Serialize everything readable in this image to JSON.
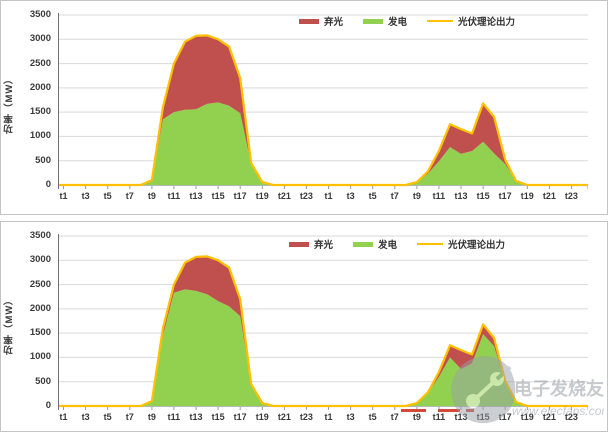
{
  "legend": {
    "curtailment": "弃光",
    "generation": "发电",
    "theoretical": "光伏理论出力"
  },
  "axis": {
    "y_title": "功率（MW）",
    "y_ticks": [
      "3500",
      "3000",
      "2500",
      "2000",
      "1500",
      "1000",
      "500",
      "0"
    ],
    "x_labels_day": [
      "t1",
      "t3",
      "t5",
      "t7",
      "t9",
      "t11",
      "t13",
      "t15",
      "t17",
      "t19",
      "t21",
      "t23"
    ],
    "days": 2
  },
  "colors": {
    "curtailment": "#c0504d",
    "generation": "#92d050",
    "theoretical": "#ffc000",
    "grid": "#d9d9d9",
    "axis_line": "#6e6e6e",
    "baseline": "#b7b7b7",
    "tick": "#9a9a9a",
    "tick_text": "#3a3a3a",
    "panel_border": "#c4c4c4",
    "axis_dash": "#d0493a",
    "watermark": "#8f979e"
  },
  "watermark": {
    "title": "电子发烧友",
    "url": "www.elecfans.com"
  },
  "chart_data": [
    {
      "type": "area",
      "stacked": true,
      "title": "",
      "xlabel": "",
      "ylabel": "功率（MW）",
      "ylim": [
        0,
        3500
      ],
      "x_hours": 48,
      "x_tick_labels_per_day": [
        "t1",
        "t3",
        "t5",
        "t7",
        "t9",
        "t11",
        "t13",
        "t15",
        "t17",
        "t19",
        "t21",
        "t23"
      ],
      "legend_position": "top",
      "grid": true,
      "series": [
        {
          "name": "发电",
          "role": "generation",
          "values": [
            0,
            0,
            0,
            0,
            0,
            0,
            0,
            0,
            80,
            1350,
            1500,
            1550,
            1560,
            1670,
            1700,
            1630,
            1480,
            420,
            50,
            0,
            0,
            0,
            0,
            0,
            0,
            0,
            0,
            0,
            0,
            0,
            0,
            0,
            50,
            230,
            490,
            780,
            640,
            700,
            890,
            650,
            430,
            70,
            0,
            0,
            0,
            0,
            0,
            0
          ]
        },
        {
          "name": "弃光",
          "role": "curtailment",
          "values": [
            0,
            0,
            0,
            0,
            0,
            0,
            0,
            0,
            20,
            250,
            1000,
            1400,
            1510,
            1410,
            1300,
            1220,
            720,
            30,
            10,
            0,
            0,
            0,
            0,
            0,
            0,
            0,
            0,
            0,
            0,
            0,
            0,
            0,
            10,
            50,
            210,
            470,
            510,
            360,
            790,
            750,
            90,
            10,
            0,
            0,
            0,
            0,
            0,
            0
          ]
        },
        {
          "name": "光伏理论出力",
          "role": "theoretical",
          "values": [
            0,
            0,
            0,
            0,
            0,
            0,
            0,
            0,
            100,
            1600,
            2500,
            2950,
            3070,
            3080,
            3000,
            2850,
            2200,
            450,
            60,
            0,
            0,
            0,
            0,
            0,
            0,
            0,
            0,
            0,
            0,
            0,
            0,
            0,
            60,
            280,
            700,
            1250,
            1150,
            1060,
            1680,
            1400,
            520,
            80,
            0,
            0,
            0,
            0,
            0,
            0
          ]
        }
      ]
    },
    {
      "type": "area",
      "stacked": true,
      "title": "",
      "xlabel": "",
      "ylabel": "功率（MW）",
      "ylim": [
        0,
        3500
      ],
      "x_hours": 48,
      "x_tick_labels_per_day": [
        "t1",
        "t3",
        "t5",
        "t7",
        "t9",
        "t11",
        "t13",
        "t15",
        "t17",
        "t19",
        "t21",
        "t23"
      ],
      "legend_position": "top",
      "grid": true,
      "axis_dashes": [
        [
          343,
          25
        ],
        [
          380,
          22
        ],
        [
          408,
          8
        ]
      ],
      "series": [
        {
          "name": "发电",
          "role": "generation",
          "values": [
            0,
            0,
            0,
            0,
            0,
            0,
            0,
            0,
            80,
            1450,
            2330,
            2400,
            2370,
            2300,
            2160,
            2050,
            1850,
            430,
            50,
            0,
            0,
            0,
            0,
            0,
            0,
            0,
            0,
            0,
            0,
            0,
            0,
            0,
            55,
            260,
            600,
            1000,
            760,
            880,
            1480,
            1230,
            480,
            75,
            0,
            0,
            0,
            0,
            0,
            0
          ]
        },
        {
          "name": "弃光",
          "role": "curtailment",
          "values": [
            0,
            0,
            0,
            0,
            0,
            0,
            0,
            0,
            20,
            150,
            170,
            550,
            700,
            780,
            840,
            800,
            350,
            20,
            10,
            0,
            0,
            0,
            0,
            0,
            0,
            0,
            0,
            0,
            0,
            0,
            0,
            0,
            5,
            20,
            100,
            250,
            390,
            180,
            200,
            170,
            40,
            5,
            0,
            0,
            0,
            0,
            0,
            0
          ]
        },
        {
          "name": "光伏理论出力",
          "role": "theoretical",
          "values": [
            0,
            0,
            0,
            0,
            0,
            0,
            0,
            0,
            100,
            1600,
            2500,
            2950,
            3070,
            3080,
            3000,
            2850,
            2200,
            450,
            60,
            0,
            0,
            0,
            0,
            0,
            0,
            0,
            0,
            0,
            0,
            0,
            0,
            0,
            60,
            280,
            700,
            1250,
            1150,
            1060,
            1680,
            1400,
            520,
            80,
            0,
            0,
            0,
            0,
            0,
            0
          ]
        }
      ]
    }
  ]
}
